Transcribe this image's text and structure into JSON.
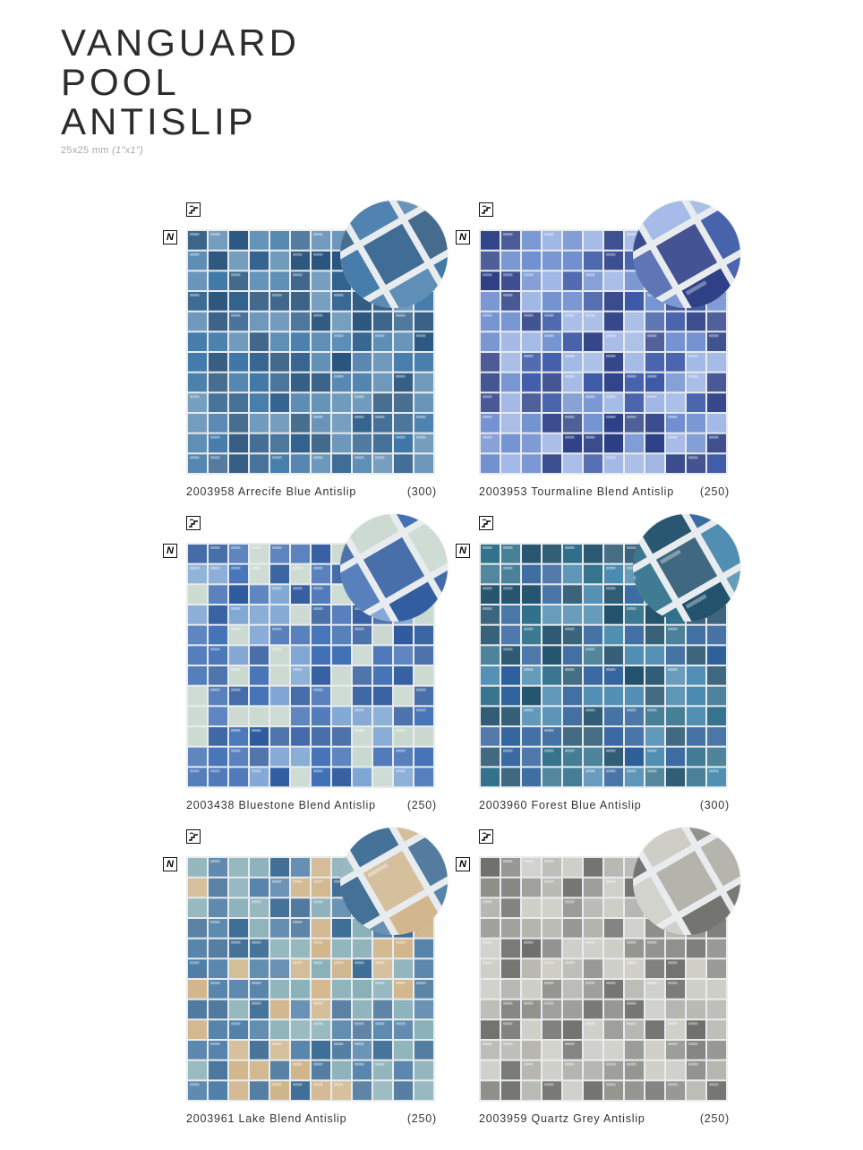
{
  "header": {
    "title_lines": [
      "VANGUARD",
      "POOL",
      "ANTISLIP"
    ],
    "size_metric": "25x25 mm",
    "size_imperial": "(1\"x1\")"
  },
  "icons": {
    "top": "pool-step-icon",
    "side": "n-badge-icon"
  },
  "products": [
    {
      "code_name": "2003958 Arrecife Blue Antislip",
      "count": "(300)",
      "colors": [
        "#2e5f8c",
        "#3f78a8",
        "#23507a",
        "#5d8db5"
      ]
    },
    {
      "code_name": "2003953 Tourmaline Blend Antislip",
      "count": "(250)",
      "colors": [
        "#3d5aa8",
        "#6f8fd0",
        "#9fb6e6",
        "#2c3f86"
      ]
    },
    {
      "code_name": "2003438 Bluestone Blend Antislip",
      "count": "(250)",
      "colors": [
        "#3f6eb5",
        "#7fa6d4",
        "#c9d8cf",
        "#2e5a9e"
      ]
    },
    {
      "code_name": "2003960 Forest Blue Antislip",
      "count": "(300)",
      "colors": [
        "#2f6f8a",
        "#4a8ab0",
        "#1f4f6a",
        "#2a5e9a"
      ]
    },
    {
      "code_name": "2003961 Lake Blend Antislip",
      "count": "(250)",
      "colors": [
        "#4f7fa8",
        "#8ab0b8",
        "#d1b58a",
        "#3d6c95"
      ]
    },
    {
      "code_name": "2003959 Quartz Grey Antislip",
      "count": "(250)",
      "colors": [
        "#8f8f8a",
        "#b4b4ad",
        "#6e6e6a",
        "#cdcdc6"
      ]
    }
  ]
}
